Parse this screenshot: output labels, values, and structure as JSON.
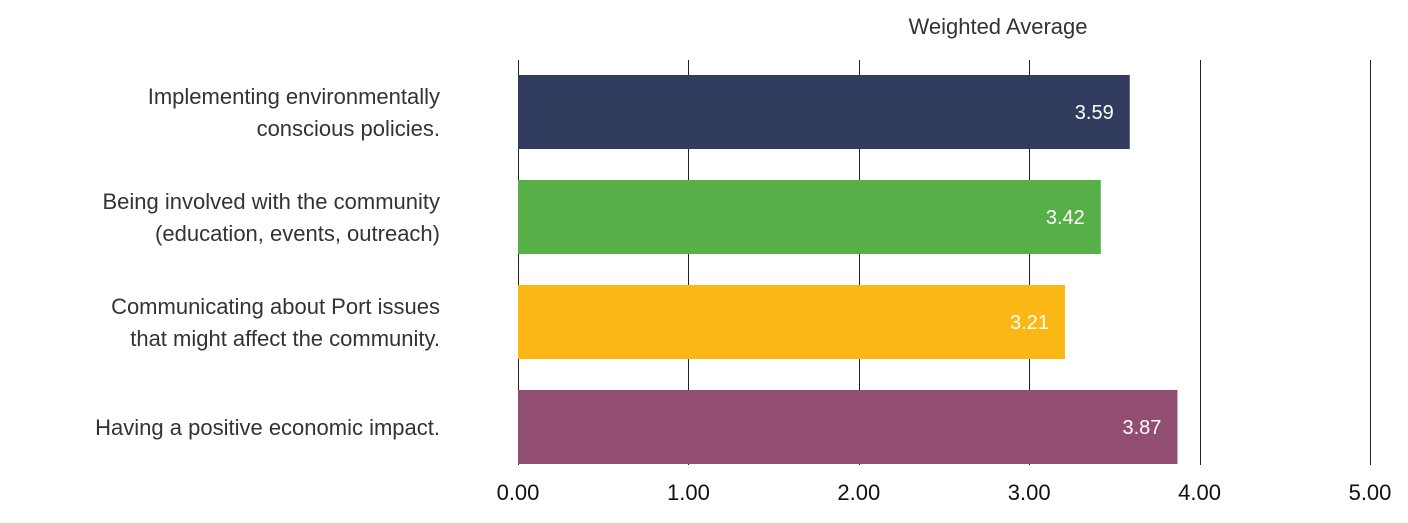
{
  "chart_data": {
    "type": "bar",
    "orientation": "horizontal",
    "title": "Weighted Average",
    "categories": [
      [
        "Implementing environmentally",
        "conscious policies."
      ],
      [
        "Being involved with the community",
        "(education, events, outreach)"
      ],
      [
        "Communicating about Port issues",
        "that might affect the community."
      ],
      [
        "Having a positive economic impact."
      ]
    ],
    "values": [
      3.59,
      3.42,
      3.21,
      3.87
    ],
    "data_labels": [
      "3.59",
      "3.42",
      "3.21",
      "3.87"
    ],
    "colors": [
      "#313C5E",
      "#56B047",
      "#FBB714",
      "#924E71"
    ],
    "xlim": [
      0,
      5
    ],
    "ticks": [
      0,
      1,
      2,
      3,
      4,
      5
    ],
    "tick_labels": [
      "0.00",
      "1.00",
      "2.00",
      "3.00",
      "4.00",
      "5.00"
    ],
    "grid": true,
    "xlabel": "",
    "ylabel": ""
  }
}
